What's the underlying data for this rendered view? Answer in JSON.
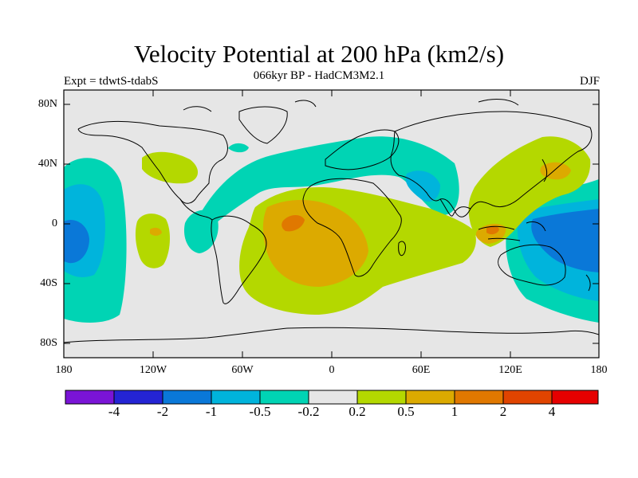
{
  "header": {
    "title": "Velocity Potential at 200 hPa (km2/s)",
    "subtitle": "066kyr BP - HadCM3M2.1",
    "experiment": "Expt = tdwtS-tdabS",
    "season": "DJF"
  },
  "map": {
    "lat_labels": [
      "80N",
      "40N",
      "0",
      "40S",
      "80S"
    ],
    "lon_labels": [
      "180",
      "120W",
      "60W",
      "0",
      "60E",
      "120E",
      "180"
    ]
  },
  "colorbar": {
    "colors": [
      "#7a14d6",
      "#2424d4",
      "#0a78d8",
      "#00b4dc",
      "#00d4b4",
      "#e6e6e6",
      "#b4d800",
      "#dcaa00",
      "#e07800",
      "#e04400",
      "#e60000"
    ],
    "labels": [
      "-4",
      "-2",
      "-1",
      "-0.5",
      "-0.2",
      "0.2",
      "0.5",
      "1",
      "2",
      "4"
    ]
  },
  "colors": {
    "background": "#e6e6e6",
    "coast": "#000000"
  }
}
